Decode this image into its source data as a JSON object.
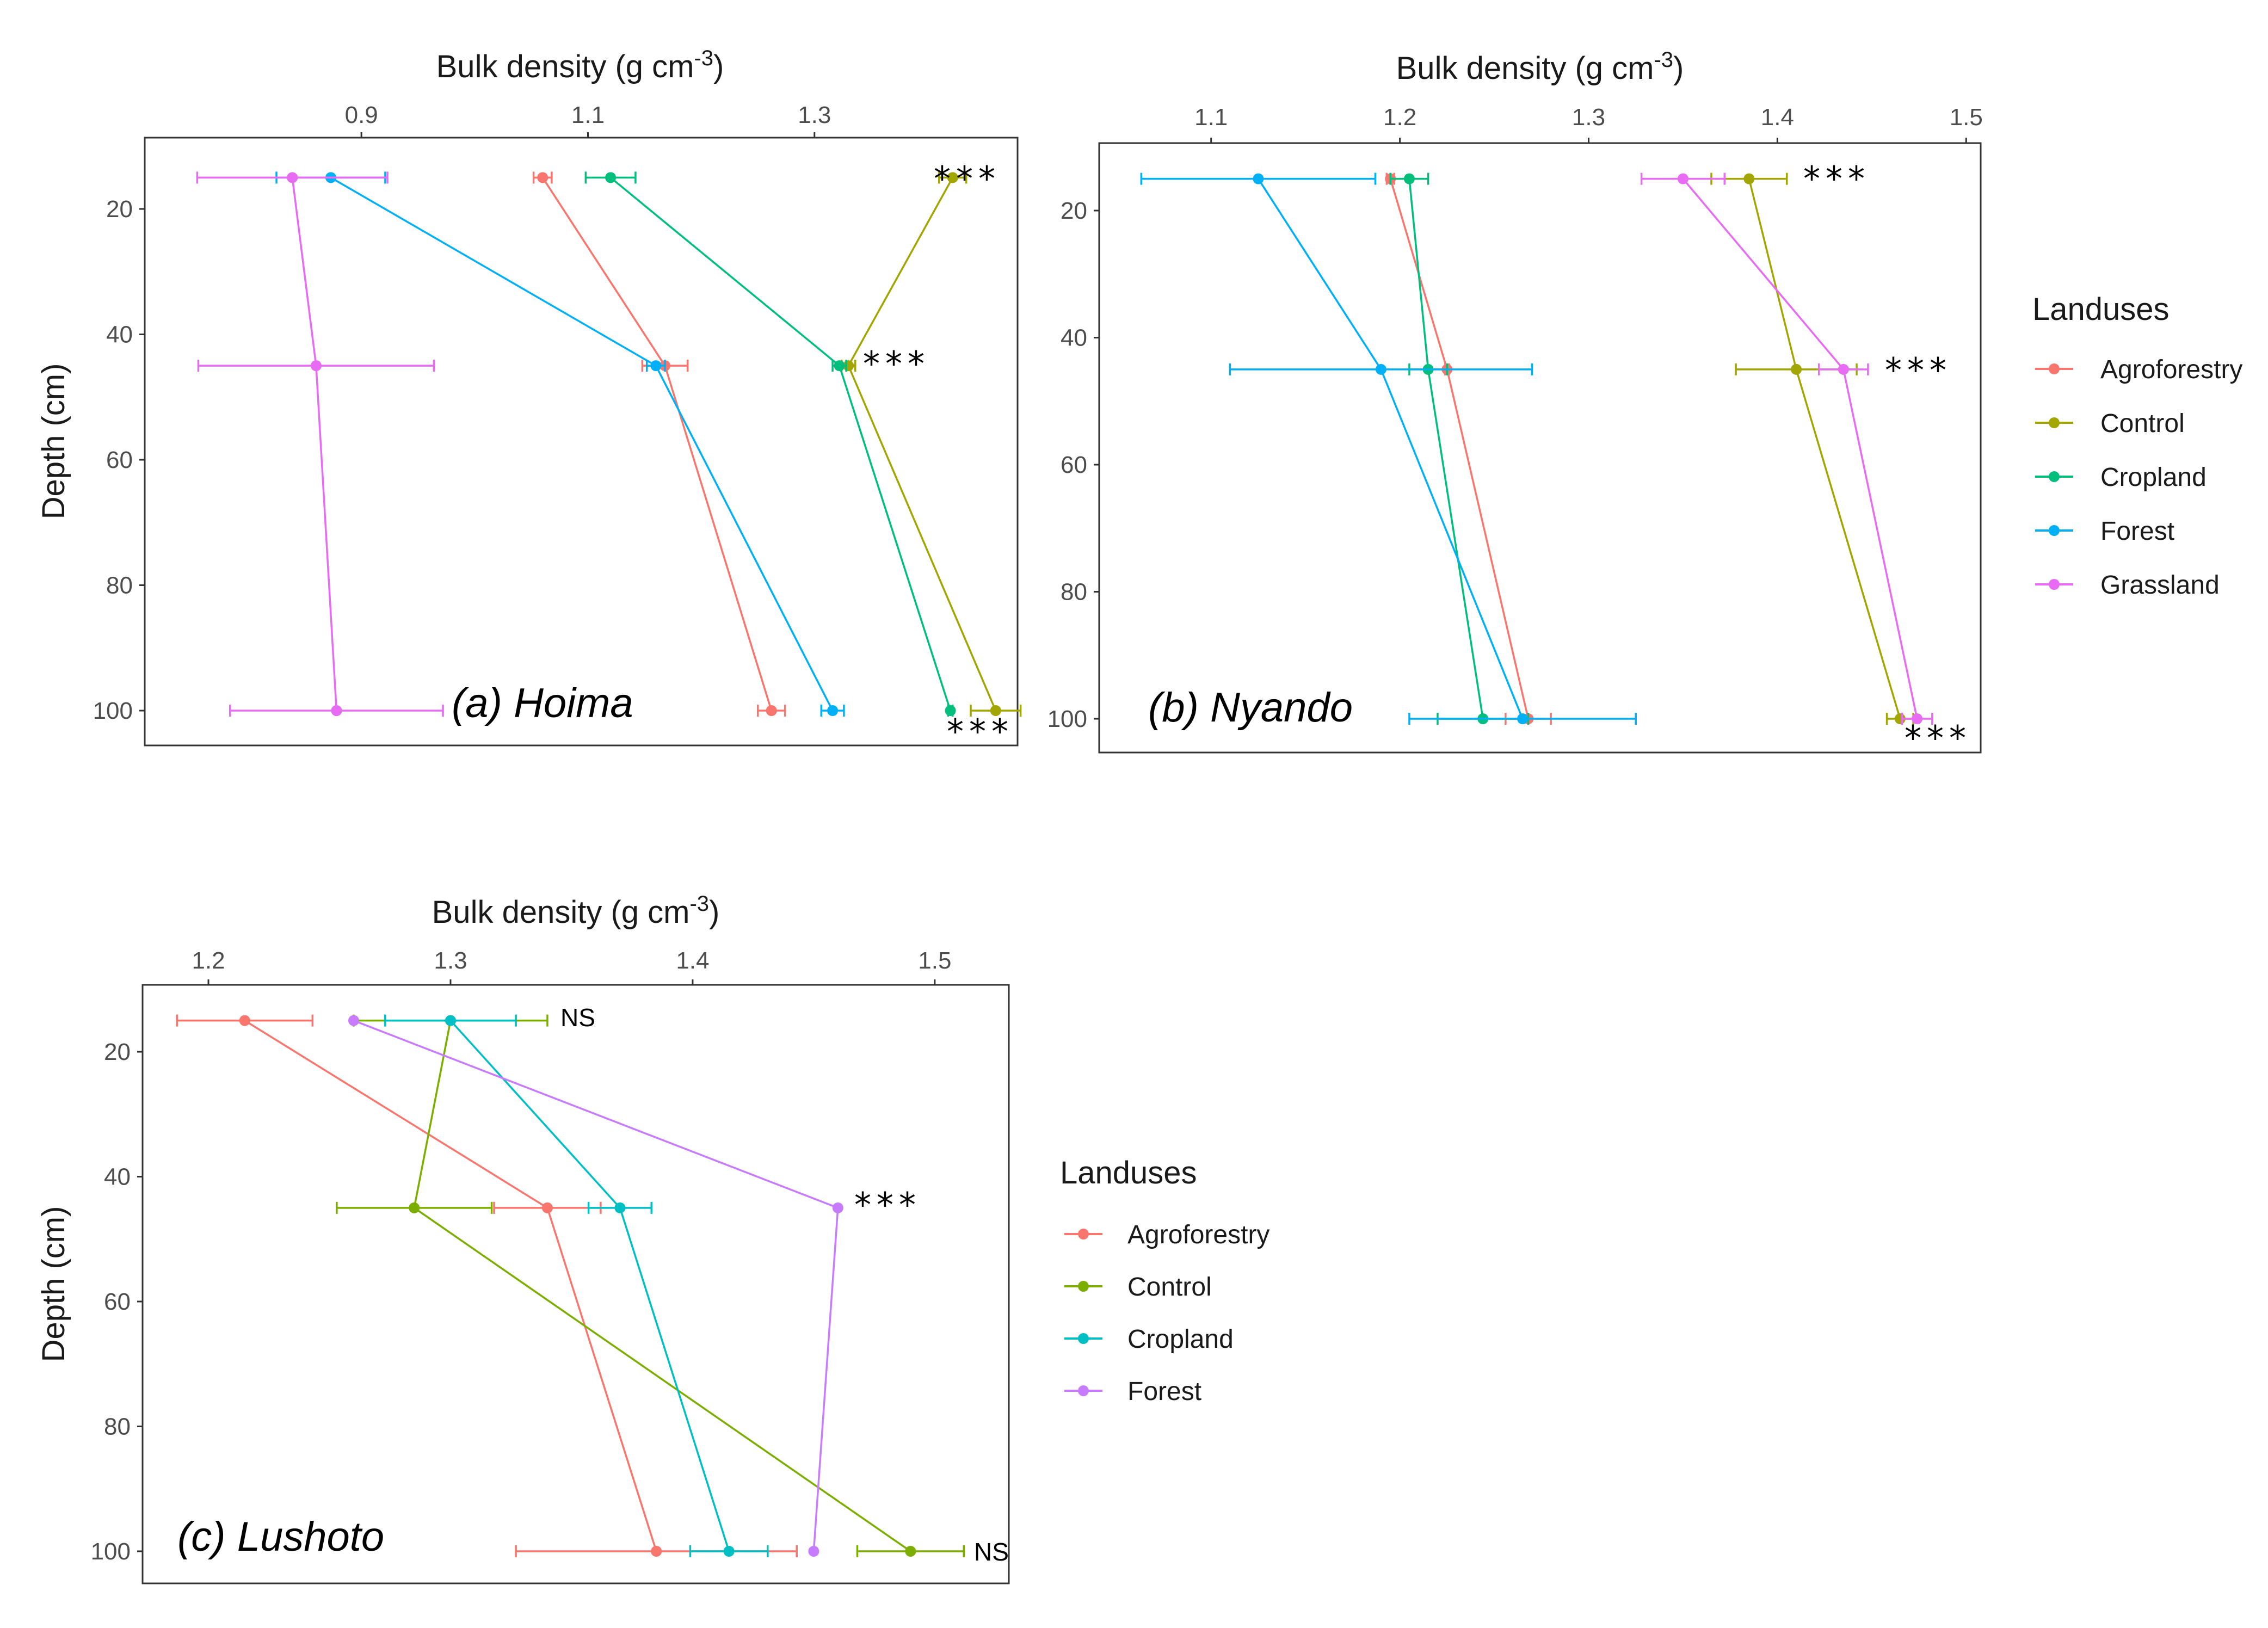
{
  "colors": {
    "Agroforestry": "#F8766D",
    "Control": "#A3A500",
    "Cropland": "#00BF7D",
    "Forest": "#00B0F6",
    "Grassland": "#E76BF3",
    "Cropland_c": "#00BFC4",
    "Control_c": "#7CAE00",
    "Forest_c": "#C77CFF"
  },
  "chart_data": [
    {
      "type": "line",
      "title": "(a) Hoima",
      "xlabel": "Bulk density (g cm-3)",
      "xlabel_main": "Bulk density (g cm",
      "xlabel_sup": "-3",
      "xlabel_close": ")",
      "ylabel": "Depth (cm)",
      "xlim": [
        0.7087,
        1.4793
      ],
      "ylim": [
        105,
        10
      ],
      "xticks": [
        0.9,
        1.1,
        1.3
      ],
      "xtick_labels": [
        "0.9",
        "1.1",
        "1.3"
      ],
      "yticks": [
        20,
        40,
        60,
        80,
        100
      ],
      "ytick_labels": [
        "20",
        "40",
        "60",
        "80",
        "100"
      ],
      "depths": [
        15,
        45,
        100
      ],
      "series": [
        {
          "name": "Agroforestry",
          "values": [
            1.06,
            1.168,
            1.262
          ],
          "err": [
            0.008,
            0.02,
            0.012
          ]
        },
        {
          "name": "Control",
          "values": [
            1.422,
            1.33,
            1.46
          ],
          "err": [
            0.012,
            0.006,
            0.022
          ]
        },
        {
          "name": "Cropland",
          "values": [
            1.12,
            1.322,
            1.42
          ],
          "err": [
            0.022,
            0.006,
            0.002
          ]
        },
        {
          "name": "Forest",
          "values": [
            0.873,
            1.16,
            1.316
          ],
          "err": [
            0.048,
            0.008,
            0.01
          ]
        },
        {
          "name": "Grassland",
          "values": [
            0.839,
            0.86,
            0.878
          ],
          "err": [
            0.084,
            0.104,
            0.094
          ]
        }
      ],
      "annotations": [
        {
          "depth": 15,
          "text": "***"
        },
        {
          "depth": 45,
          "text": "***"
        },
        {
          "depth": 100,
          "text": "***"
        }
      ]
    },
    {
      "type": "line",
      "title": "(b) Nyando",
      "xlabel": "Bulk density (g cm-3)",
      "xlabel_main": "Bulk density (g cm",
      "xlabel_sup": "-3",
      "xlabel_close": ")",
      "ylabel": "",
      "xlim": [
        1.0407,
        1.5077
      ],
      "ylim": [
        105,
        10
      ],
      "xticks": [
        1.1,
        1.2,
        1.3,
        1.4,
        1.5
      ],
      "xtick_labels": [
        "1.1",
        "1.2",
        "1.3",
        "1.4",
        "1.5"
      ],
      "yticks": [
        20,
        40,
        60,
        80,
        100
      ],
      "ytick_labels": [
        "20",
        "40",
        "60",
        "80",
        "100"
      ],
      "depths": [
        15,
        45,
        100
      ],
      "series": [
        {
          "name": "Agroforestry",
          "values": [
            1.195,
            1.225,
            1.268
          ],
          "err": [
            0.002,
            0.001,
            0.012
          ]
        },
        {
          "name": "Control",
          "values": [
            1.385,
            1.41,
            1.465
          ],
          "err": [
            0.02,
            0.032,
            0.007
          ]
        },
        {
          "name": "Cropland",
          "values": [
            1.205,
            1.215,
            1.244
          ],
          "err": [
            0.01,
            0.01,
            0.024
          ]
        },
        {
          "name": "Forest",
          "values": [
            1.125,
            1.19,
            1.265
          ],
          "err": [
            0.062,
            0.08,
            0.06
          ]
        },
        {
          "name": "Grassland",
          "values": [
            1.35,
            1.435,
            1.474
          ],
          "err": [
            0.022,
            0.013,
            0.008
          ]
        }
      ],
      "annotations": [
        {
          "depth": 15,
          "text": "***"
        },
        {
          "depth": 45,
          "text": "***"
        },
        {
          "depth": 100,
          "text": "***"
        }
      ]
    },
    {
      "type": "line",
      "title": "(c) Lushoto",
      "xlabel": "Bulk density (g cm-3)",
      "xlabel_main": "Bulk density (g cm",
      "xlabel_sup": "-3",
      "xlabel_close": ")",
      "ylabel": "Depth (cm)",
      "xlim": [
        1.1728,
        1.5306
      ],
      "ylim": [
        105,
        10
      ],
      "xticks": [
        1.2,
        1.3,
        1.4,
        1.5
      ],
      "xtick_labels": [
        "1.2",
        "1.3",
        "1.4",
        "1.5"
      ],
      "yticks": [
        20,
        40,
        60,
        80,
        100
      ],
      "ytick_labels": [
        "20",
        "40",
        "60",
        "80",
        "100"
      ],
      "depths": [
        15,
        45,
        100
      ],
      "series": [
        {
          "name": "Agroforestry",
          "values": [
            1.215,
            1.34,
            1.385
          ],
          "err": [
            0.028,
            0.022,
            0.058
          ]
        },
        {
          "name": "Control",
          "values": [
            1.3,
            1.285,
            1.49
          ],
          "err": [
            0.04,
            0.032,
            0.022
          ]
        },
        {
          "name": "Cropland",
          "values": [
            1.3,
            1.37,
            1.415
          ],
          "err": [
            0.027,
            0.013,
            0.016
          ]
        },
        {
          "name": "Forest",
          "values": [
            1.26,
            1.46,
            1.45
          ],
          "err": [
            0.0,
            0.0,
            0.0
          ]
        }
      ],
      "annotations": [
        {
          "depth": 15,
          "text": "NS"
        },
        {
          "depth": 45,
          "text": "***"
        },
        {
          "depth": 100,
          "text": "NS"
        }
      ]
    }
  ],
  "legends": [
    {
      "title": "Landuses",
      "items": [
        "Agroforestry",
        "Control",
        "Cropland",
        "Forest",
        "Grassland"
      ]
    },
    {
      "title": "Landuses",
      "items": [
        "Agroforestry",
        "Control",
        "Cropland",
        "Forest"
      ]
    }
  ]
}
